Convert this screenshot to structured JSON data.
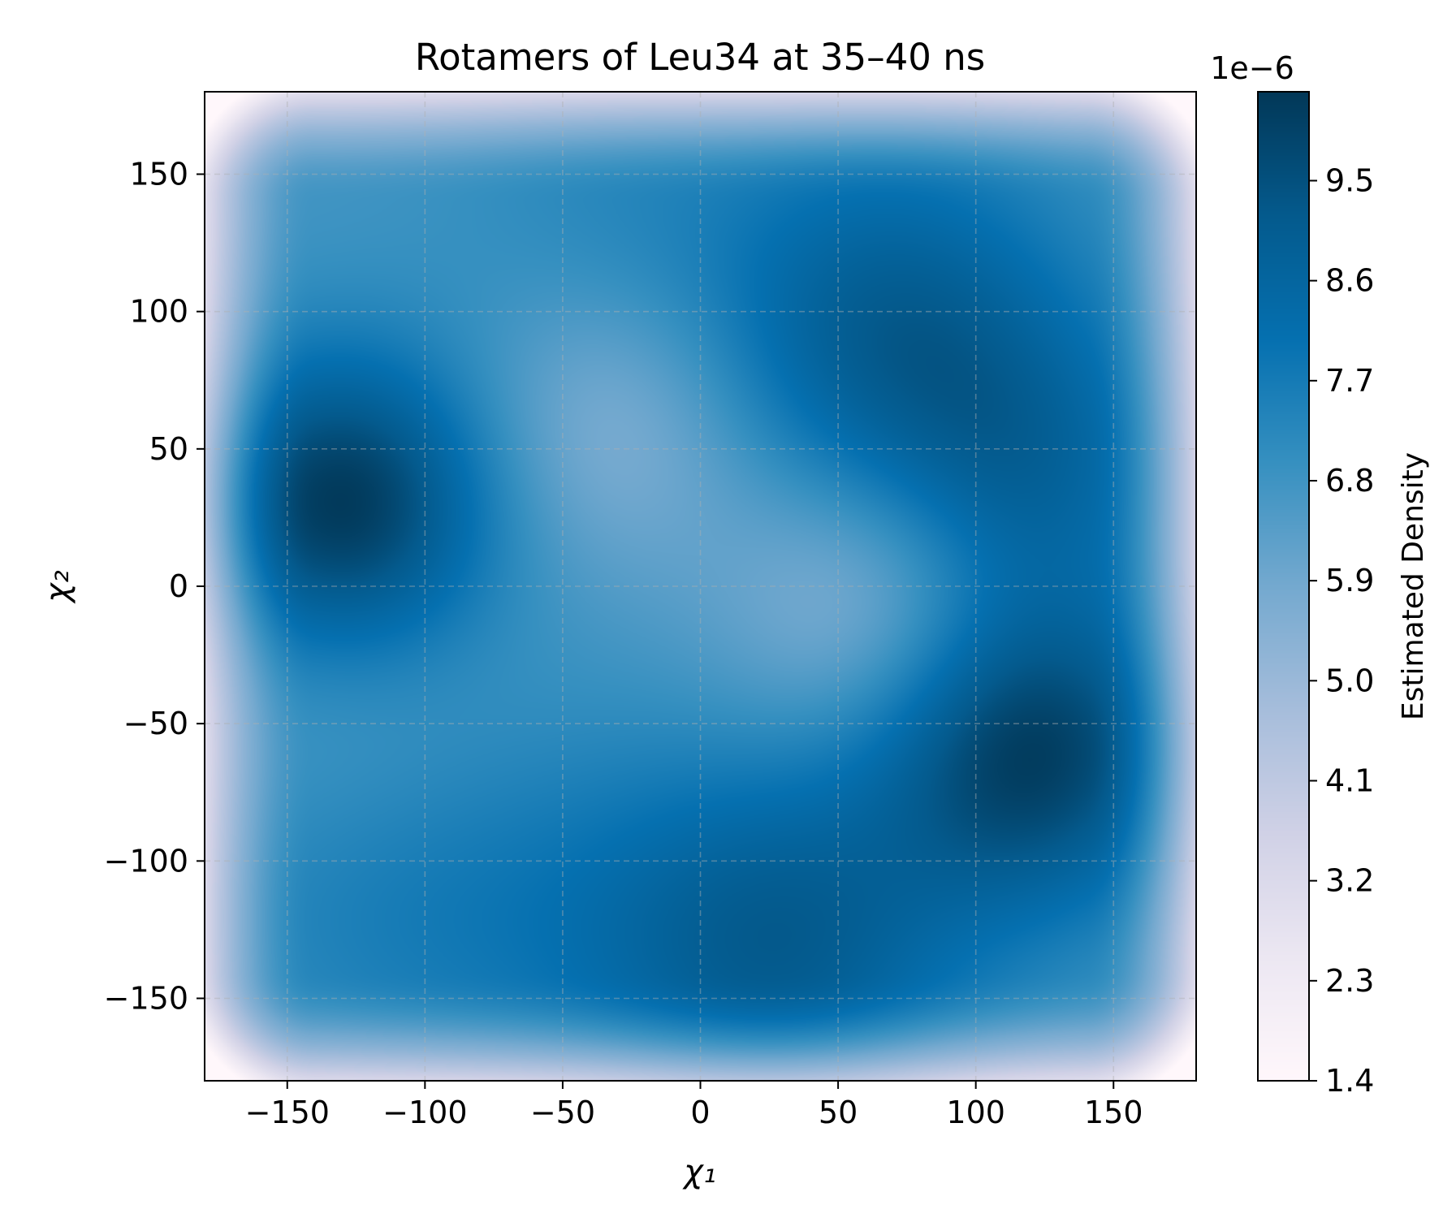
{
  "chart_data": {
    "type": "heatmap",
    "title": "Rotamers of Leu34 at 35–40 ns",
    "xlabel": "χ₁",
    "ylabel": "χ₂",
    "xlim": [
      -180,
      180
    ],
    "ylim": [
      -180,
      180
    ],
    "x_ticks": [
      -150,
      -100,
      -50,
      0,
      50,
      100,
      150
    ],
    "y_ticks": [
      -150,
      -100,
      -50,
      0,
      50,
      100,
      150
    ],
    "x_tick_labels": [
      "−150",
      "−100",
      "−50",
      "0",
      "50",
      "100",
      "150"
    ],
    "y_tick_labels": [
      "−150",
      "−100",
      "−50",
      "0",
      "50",
      "100",
      "150"
    ],
    "grid": true,
    "colormap": "PuBu",
    "colors": [
      "#fff7fb",
      "#ece7f2",
      "#d0d1e6",
      "#a6bddb",
      "#74a9cf",
      "#3690c0",
      "#0570b0",
      "#045a8d",
      "#023858"
    ],
    "colorbar": {
      "label": "Estimated Density",
      "exponent_label": "1e−6",
      "ticks": [
        1.4,
        2.3,
        3.2,
        4.1,
        5.0,
        5.9,
        6.8,
        7.7,
        8.6,
        9.5
      ],
      "tick_labels": [
        "1.4",
        "2.3",
        "3.2",
        "4.1",
        "5.0",
        "5.9",
        "6.8",
        "7.7",
        "8.6",
        "9.5"
      ],
      "range": [
        1.4,
        10.3
      ]
    },
    "density_peaks": [
      {
        "chi1": -130,
        "chi2": 30,
        "density": 10.1
      },
      {
        "chi1": 120,
        "chi2": -60,
        "density": 9.9
      },
      {
        "chi1": 70,
        "chi2": 90,
        "density": 8.9
      },
      {
        "chi1": 30,
        "chi2": -130,
        "density": 8.6
      },
      {
        "chi1": 120,
        "chi2": 40,
        "density": 8.0
      }
    ],
    "density_minima": [
      {
        "chi1": -30,
        "chi2": 60,
        "density": 5.5
      },
      {
        "chi1": 60,
        "chi2": -5,
        "density": 5.2
      }
    ]
  }
}
